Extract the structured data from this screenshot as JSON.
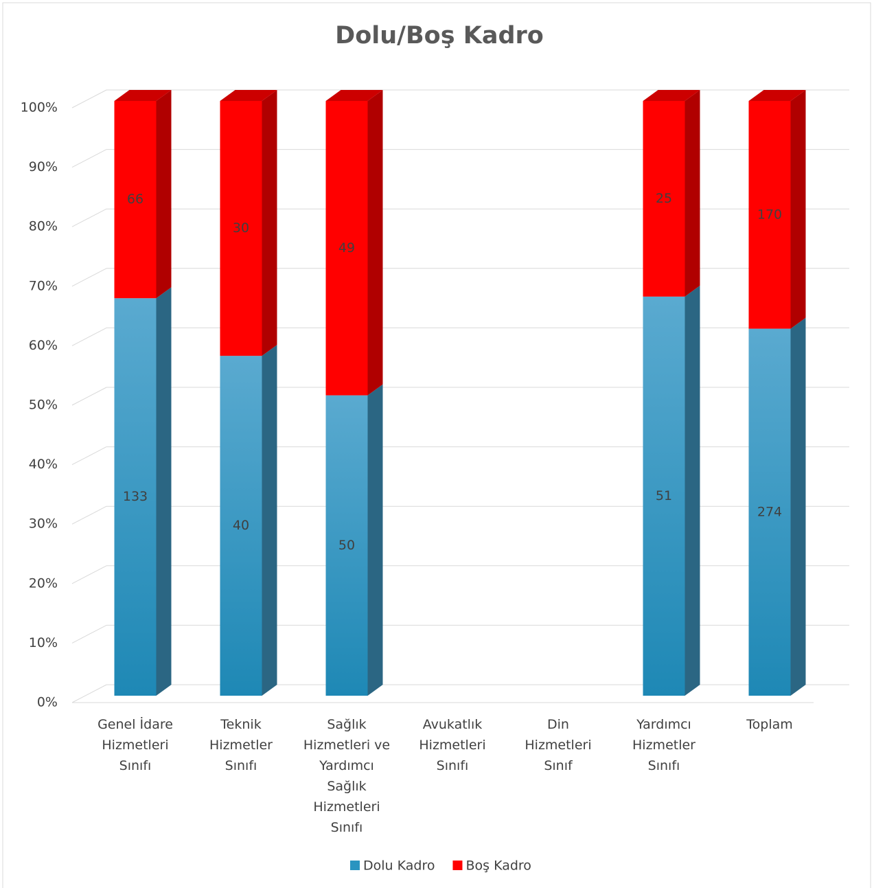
{
  "chart_data": {
    "type": "bar",
    "stacking": "percent",
    "title": "Dolu/Boş Kadro",
    "categories": [
      "Genel İdare\nHizmetleri\nSınıfı",
      "Teknik\nHizmetler\nSınıfı",
      "Sağlık\nHizmetleri ve\nYardımcı\nSağlık\nHizmetleri\nSınıfı",
      "Avukatlık\nHizmetleri\nSınıfı",
      "Din\nHizmetleri\nSınıf",
      "Yardımcı\nHizmetler\nSınıfı",
      "Toplam"
    ],
    "series": [
      {
        "name": "Dolu Kadro",
        "color": "#2a94c0",
        "values": [
          133,
          40,
          50,
          null,
          null,
          51,
          274
        ]
      },
      {
        "name": "Boş Kadro",
        "color": "#ff0000",
        "values": [
          66,
          30,
          49,
          null,
          null,
          25,
          170
        ]
      }
    ],
    "ylim": [
      0,
      100
    ],
    "yticks": [
      {
        "value": 0,
        "label": "0%"
      },
      {
        "value": 10,
        "label": "10%"
      },
      {
        "value": 20,
        "label": "20%"
      },
      {
        "value": 30,
        "label": "30%"
      },
      {
        "value": 40,
        "label": "40%"
      },
      {
        "value": 50,
        "label": "50%"
      },
      {
        "value": 60,
        "label": "60%"
      },
      {
        "value": 70,
        "label": "70%"
      },
      {
        "value": 80,
        "label": "80%"
      },
      {
        "value": 90,
        "label": "90%"
      },
      {
        "value": 100,
        "label": "100%"
      }
    ],
    "grid": true,
    "legend": "bottom"
  }
}
